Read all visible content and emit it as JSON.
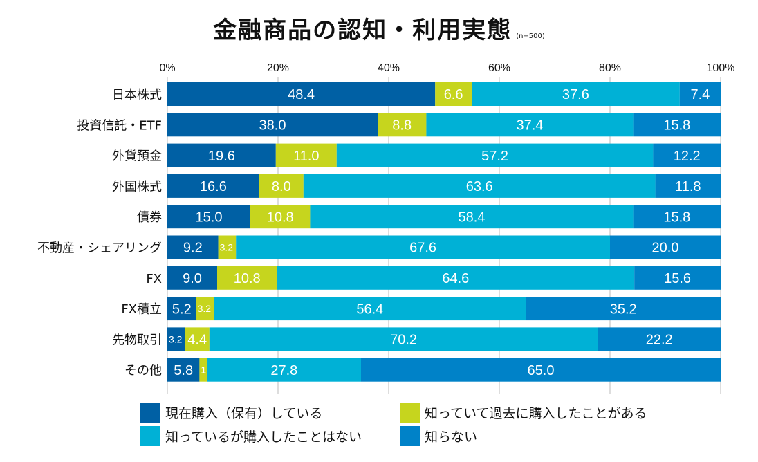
{
  "chart_data": {
    "type": "bar",
    "orientation": "horizontal",
    "stacked": true,
    "title": "金融商品の認知・利用実態",
    "subtitle": "(n=500)",
    "xlabel": "",
    "ylabel": "",
    "xlim": [
      0,
      100
    ],
    "x_ticks": [
      "0%",
      "20%",
      "40%",
      "60%",
      "80%",
      "100%"
    ],
    "grid": true,
    "legend_position": "bottom",
    "categories": [
      "日本株式",
      "投資信託・ETF",
      "外貨預金",
      "外国株式",
      "債券",
      "不動産・シェアリング",
      "FX",
      "FX積立",
      "先物取引",
      "その他"
    ],
    "series": [
      {
        "name": "現在購入（保有）している",
        "color": "#0060a4",
        "values": [
          48.4,
          38.0,
          19.6,
          16.6,
          15.0,
          9.2,
          9.0,
          5.2,
          3.2,
          5.8
        ]
      },
      {
        "name": "知っていて過去に購入したことがある",
        "color": "#c6d51e",
        "values": [
          6.6,
          8.8,
          11.0,
          8.0,
          10.8,
          3.2,
          10.8,
          3.2,
          4.4,
          1.4
        ]
      },
      {
        "name": "知っているが購入したことはない",
        "color": "#00b1d6",
        "values": [
          37.6,
          37.4,
          57.2,
          63.6,
          58.4,
          67.6,
          64.6,
          56.4,
          70.2,
          27.8
        ]
      },
      {
        "name": "知らない",
        "color": "#0082c8",
        "values": [
          7.4,
          15.8,
          12.2,
          11.8,
          15.8,
          20.0,
          15.6,
          35.2,
          22.2,
          65.0
        ]
      }
    ]
  }
}
